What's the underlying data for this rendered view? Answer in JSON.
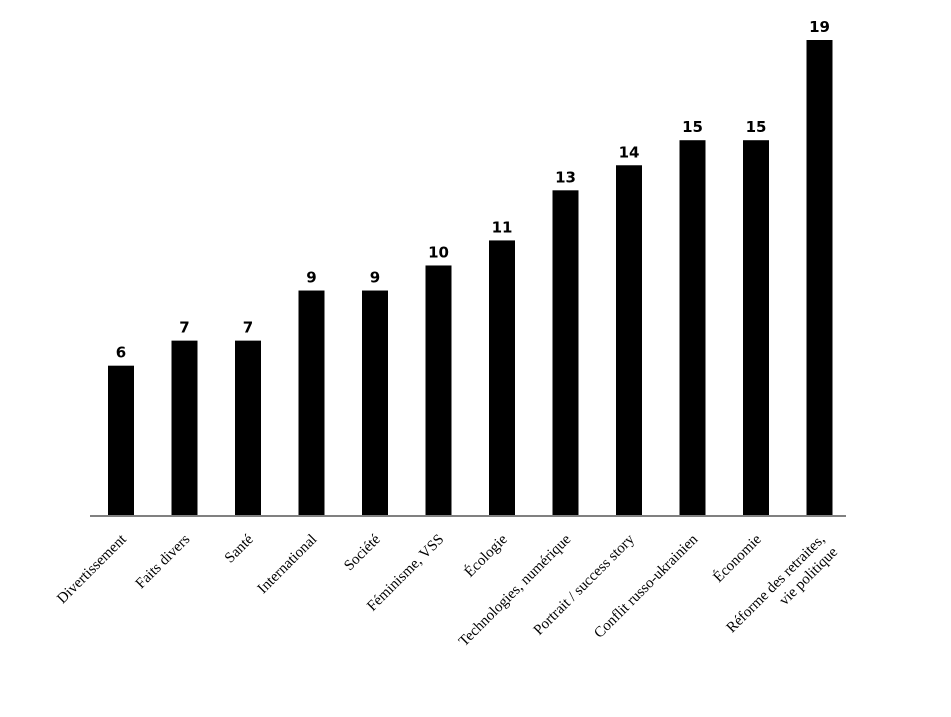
{
  "chart_data": {
    "type": "bar",
    "title": "",
    "xlabel": "",
    "ylabel": "",
    "ylim": [
      0,
      19
    ],
    "grid": false,
    "legend": "none",
    "bar_color": "#000000",
    "axis_color": "#808080",
    "categories": [
      [
        "Divertissement"
      ],
      [
        "Faits divers"
      ],
      [
        "Santé"
      ],
      [
        "International"
      ],
      [
        "Société"
      ],
      [
        "Féminisme, VSS"
      ],
      [
        "Écologie"
      ],
      [
        "Technologies, numérique"
      ],
      [
        "Portrait / success story"
      ],
      [
        "Conflit russo-ukrainien"
      ],
      [
        "Économie"
      ],
      [
        "Réforme des retraites,",
        "vie politique"
      ]
    ],
    "values": [
      6,
      7,
      7,
      9,
      9,
      10,
      11,
      13,
      14,
      15,
      15,
      19
    ]
  }
}
